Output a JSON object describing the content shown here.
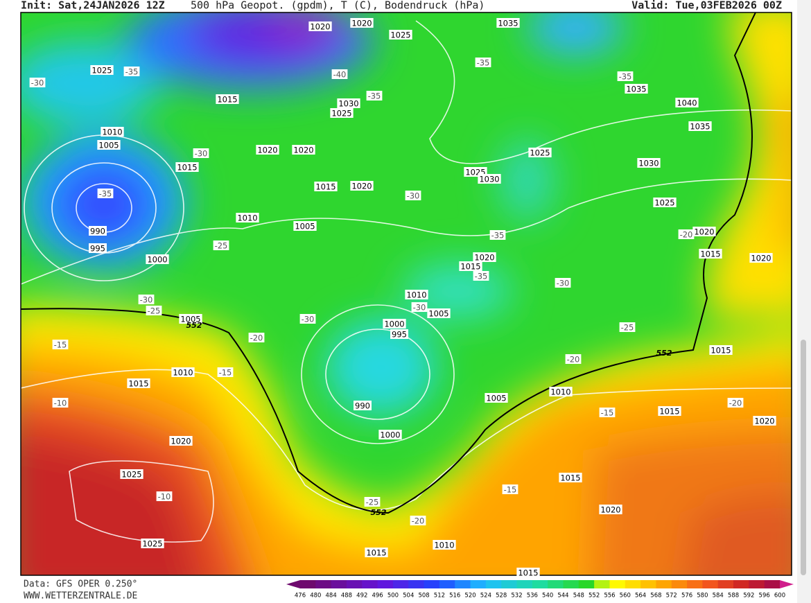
{
  "header": {
    "init": "Init: Sat,24JAN2026 12Z",
    "title": "500 hPa Geopot. (gpdm), T (C), Bodendruck (hPa)",
    "valid": "Valid: Tue,03FEB2026 00Z"
  },
  "isobar_labels": [
    1020,
    1020,
    1025,
    1035,
    1025,
    1015,
    1030,
    1025,
    1035,
    1040,
    1035,
    1010,
    1005,
    1020,
    1020,
    1015,
    1025,
    1025,
    1030,
    1030,
    1015,
    1020,
    1025,
    1010,
    1005,
    990,
    995,
    1000,
    1020,
    1015,
    1020,
    1020,
    1015,
    1010,
    1005,
    1000,
    995,
    1005,
    1010,
    1015,
    1015,
    1005,
    1010,
    990,
    1000,
    1015,
    1020,
    1020,
    1025,
    1025,
    1015,
    1020,
    1010,
    1015,
    1015
  ],
  "temperature_labels": [
    -35,
    -30,
    -40,
    -35,
    -35,
    -35,
    -30,
    -35,
    -30,
    -35,
    -25,
    -20,
    -35,
    -30,
    -30,
    -25,
    -30,
    -30,
    -25,
    -20,
    -15,
    -20,
    -15,
    -10,
    -15,
    -20,
    -10,
    -15,
    -25,
    -20
  ],
  "contour_labels": [
    552,
    552,
    552
  ],
  "footer": {
    "source": "Data: GFS OPER 0.250°",
    "site": "WWW.WETTERZENTRALE.DE"
  },
  "scale": {
    "labels": [
      476,
      480,
      484,
      488,
      492,
      496,
      500,
      504,
      508,
      512,
      516,
      520,
      524,
      528,
      532,
      536,
      540,
      544,
      548,
      552,
      556,
      560,
      564,
      568,
      572,
      576,
      580,
      584,
      588,
      592,
      596,
      600
    ]
  }
}
